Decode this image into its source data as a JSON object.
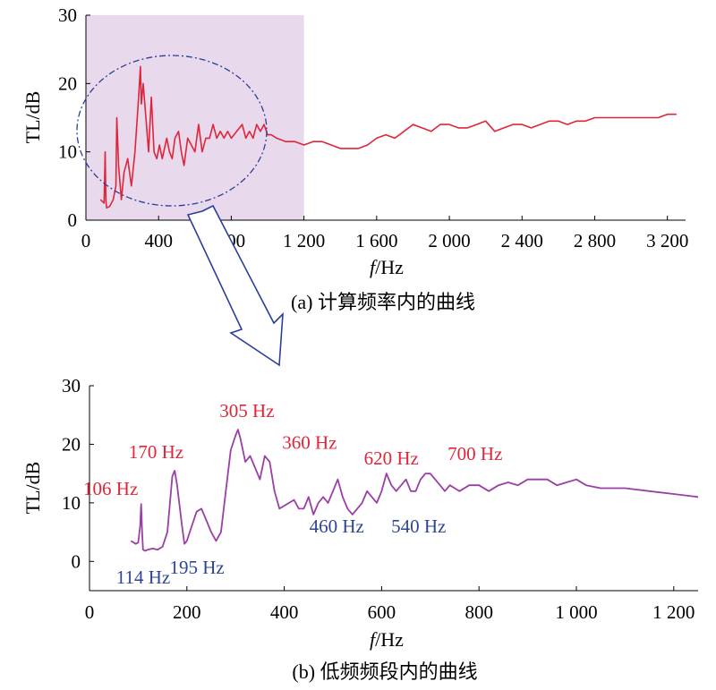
{
  "chart_data": [
    {
      "type": "line",
      "caption": "(a) 计算频率内的曲线",
      "xlabel_italic": "f",
      "xlabel_unit": "/Hz",
      "ylabel": "TL/dB",
      "xlim": [
        0,
        3300
      ],
      "ylim": [
        0,
        30
      ],
      "x_ticks": [
        0,
        400,
        800,
        1200,
        1600,
        2000,
        2400,
        2800,
        3200
      ],
      "x_tick_labels": [
        "0",
        "400",
        "800",
        "1 200",
        "1 600",
        "2 000",
        "2 400",
        "2 800",
        "3 200"
      ],
      "y_ticks": [
        0,
        10,
        20,
        30
      ],
      "y_tick_labels": [
        "0",
        "10",
        "20",
        "30"
      ],
      "highlight_range_x": [
        0,
        1200
      ],
      "colors": {
        "line": "#e0253a",
        "highlight": "#e8d9ec",
        "ellipse": "#2b3e9a",
        "arrow": "#2b3e9a"
      },
      "series": [
        {
          "x": [
            80,
            100,
            106,
            110,
            114,
            130,
            150,
            165,
            170,
            180,
            195,
            210,
            230,
            250,
            270,
            290,
            300,
            305,
            315,
            330,
            345,
            360,
            375,
            390,
            405,
            420,
            445,
            460,
            475,
            490,
            510,
            525,
            540,
            560,
            580,
            600,
            620,
            640,
            660,
            680,
            700,
            720,
            740,
            760,
            780,
            800,
            830,
            860,
            880,
            900,
            920,
            940,
            960,
            980,
            1000,
            1020,
            1050,
            1100,
            1150,
            1200,
            1250,
            1300,
            1350,
            1400,
            1450,
            1500,
            1550,
            1600,
            1650,
            1700,
            1750,
            1800,
            1850,
            1900,
            1950,
            2000,
            2050,
            2100,
            2150,
            2200,
            2250,
            2300,
            2350,
            2400,
            2450,
            2500,
            2550,
            2600,
            2650,
            2700,
            2750,
            2800,
            2850,
            2900,
            2950,
            3000,
            3050,
            3100,
            3150,
            3200,
            3250
          ],
          "y": [
            3,
            2.5,
            10,
            3,
            1.8,
            2,
            3,
            5,
            15,
            8,
            3,
            7,
            9,
            5,
            10,
            18,
            22.5,
            17,
            20,
            15,
            10,
            18,
            10,
            9,
            11,
            9,
            12,
            10,
            9,
            12,
            13,
            10,
            8,
            12,
            11,
            10,
            14,
            10,
            12,
            12,
            14,
            12,
            13,
            12,
            13,
            12,
            13,
            14,
            12,
            13,
            12,
            14,
            13,
            14,
            12.5,
            12.5,
            12,
            11.5,
            11.5,
            11,
            11.5,
            11.5,
            11,
            10.5,
            10.5,
            10.5,
            11,
            12,
            12.5,
            12,
            13,
            14,
            13.5,
            13,
            14,
            14,
            13.5,
            13.5,
            14,
            14.5,
            13,
            13.5,
            14,
            14,
            13.5,
            14,
            14.5,
            14.5,
            14,
            14.5,
            14.5,
            15,
            15,
            15,
            15,
            15,
            15,
            15,
            15,
            15.5,
            15.5
          ]
        }
      ]
    },
    {
      "type": "line",
      "caption": "(b) 低频频段内的曲线",
      "xlabel_italic": "f",
      "xlabel_unit": "/Hz",
      "ylabel": "TL/dB",
      "xlim": [
        0,
        1250
      ],
      "ylim": [
        -5,
        30
      ],
      "x_ticks": [
        0,
        200,
        400,
        600,
        800,
        1000,
        1200
      ],
      "x_tick_labels": [
        "0",
        "200",
        "400",
        "600",
        "800",
        "1 000",
        "1 200"
      ],
      "y_ticks": [
        0,
        10,
        20,
        30
      ],
      "y_tick_labels": [
        "0",
        "10",
        "20",
        "30"
      ],
      "colors": {
        "line": "#9b3ea6",
        "peak_label": "#e0253a",
        "valley_label": "#2d4694"
      },
      "peak_labels": [
        {
          "text": "106 Hz",
          "x": 106,
          "y": 9.5
        },
        {
          "text": "170 Hz",
          "x": 170,
          "y": 15.5
        },
        {
          "text": "305 Hz",
          "x": 305,
          "y": 22.5
        },
        {
          "text": "360 Hz",
          "x": 360,
          "y": 18
        },
        {
          "text": "620 Hz",
          "x": 620,
          "y": 15
        },
        {
          "text": "700 Hz",
          "x": 700,
          "y": 15.5
        }
      ],
      "valley_labels": [
        {
          "text": "114 Hz",
          "x": 114,
          "y": 2
        },
        {
          "text": "195 Hz",
          "x": 195,
          "y": 4
        },
        {
          "text": "460 Hz",
          "x": 460,
          "y": 8
        },
        {
          "text": "540 Hz",
          "x": 540,
          "y": 8
        }
      ],
      "series": [
        {
          "x": [
            85,
            95,
            100,
            104,
            106,
            108,
            110,
            114,
            120,
            130,
            140,
            150,
            160,
            170,
            175,
            180,
            190,
            195,
            200,
            210,
            220,
            230,
            240,
            250,
            260,
            270,
            280,
            290,
            300,
            305,
            310,
            320,
            330,
            340,
            350,
            360,
            370,
            380,
            390,
            400,
            410,
            420,
            430,
            440,
            450,
            460,
            470,
            480,
            490,
            500,
            510,
            520,
            530,
            540,
            550,
            560,
            570,
            580,
            590,
            600,
            610,
            620,
            630,
            640,
            650,
            660,
            670,
            680,
            690,
            700,
            710,
            720,
            730,
            740,
            760,
            780,
            800,
            820,
            840,
            860,
            880,
            900,
            920,
            940,
            960,
            980,
            1000,
            1020,
            1050,
            1100,
            1150,
            1200,
            1250
          ],
          "y": [
            3.5,
            3,
            3.2,
            6,
            9.8,
            5,
            2,
            1.8,
            2,
            2.2,
            2,
            2.5,
            5,
            14.5,
            15.5,
            13,
            6,
            3,
            3.5,
            6,
            8.5,
            9,
            7,
            5,
            3.5,
            5,
            12,
            19,
            21.5,
            22.5,
            21,
            17,
            18,
            16,
            14,
            18,
            17,
            12,
            9,
            9.5,
            10,
            10.5,
            9,
            9,
            11,
            8,
            10,
            11,
            10,
            12,
            14,
            11,
            9,
            8,
            9,
            10,
            12,
            11,
            10,
            12,
            15,
            13,
            12,
            13,
            14,
            12,
            12,
            14,
            15,
            15,
            14,
            13,
            12,
            13,
            12,
            13,
            13,
            12,
            13,
            13.5,
            13,
            14,
            14,
            14,
            13,
            13.5,
            14,
            13,
            12.5,
            12.5,
            12,
            11.5,
            11
          ]
        }
      ]
    }
  ]
}
